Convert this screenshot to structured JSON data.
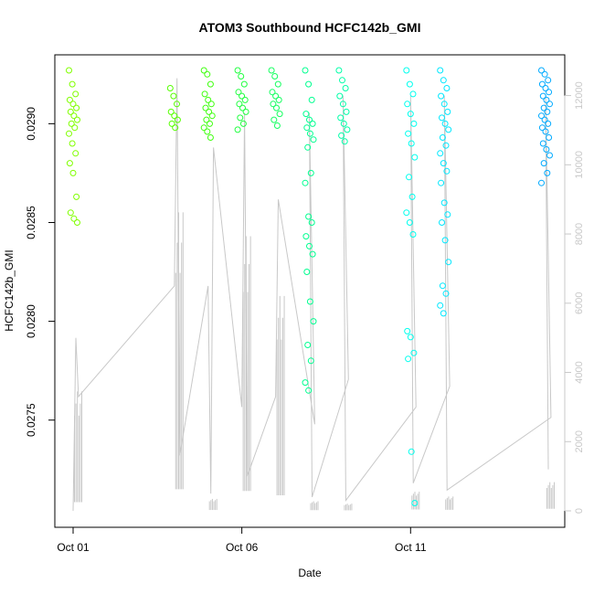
{
  "chart_data": {
    "type": "scatter",
    "title": "ATOM3 Southbound HCFC142b_GMI",
    "xlabel": "Date",
    "ylabel": "HCFC142b_GMI",
    "x_ticks": [
      "Oct 01",
      "Oct 06",
      "Oct 11"
    ],
    "y_left": {
      "range": [
        0.02705,
        0.02927
      ],
      "ticks": [
        "0.0275",
        "0.0280",
        "0.0285",
        "0.0290"
      ]
    },
    "y_right": {
      "range": [
        0,
        12200
      ],
      "ticks": [
        "0",
        "2000",
        "4000",
        "6000",
        "8000",
        "10000",
        "12000"
      ]
    },
    "x_range_days": [
      "2016-10-01",
      "2016-10-15"
    ],
    "series": [
      {
        "kind": "points",
        "clusters": [
          {
            "date": "Oct 01",
            "color": "#80ff00",
            "values": [
              0.02927,
              0.0292,
              0.02915,
              0.02912,
              0.0291,
              0.02908,
              0.02906,
              0.02904,
              0.02902,
              0.029,
              0.02898,
              0.02895,
              0.0289,
              0.02885,
              0.0288,
              0.02875,
              0.02863,
              0.02855,
              0.02852,
              0.0285
            ]
          },
          {
            "date": "Oct 04",
            "color": "#55ff00",
            "values": [
              0.02918,
              0.02914,
              0.0291,
              0.02906,
              0.02904,
              0.02902,
              0.029,
              0.02898
            ]
          },
          {
            "date": "Oct 05",
            "color": "#40ff10",
            "values": [
              0.02927,
              0.02925,
              0.0292,
              0.02915,
              0.02912,
              0.0291,
              0.02908,
              0.02906,
              0.02904,
              0.02902,
              0.029,
              0.02898,
              0.02896,
              0.02893
            ]
          },
          {
            "date": "Oct 06",
            "color": "#20ff40",
            "values": [
              0.02927,
              0.02924,
              0.0292,
              0.02916,
              0.02914,
              0.02912,
              0.0291,
              0.02908,
              0.02906,
              0.02903,
              0.029,
              0.02897
            ]
          },
          {
            "date": "Oct 07",
            "color": "#15ff60",
            "values": [
              0.02927,
              0.02924,
              0.0292,
              0.02916,
              0.02914,
              0.02912,
              0.0291,
              0.02908,
              0.02905,
              0.02902,
              0.02899
            ]
          },
          {
            "date": "Oct 08",
            "color": "#00ff90",
            "values": [
              0.02927,
              0.0292,
              0.02912,
              0.02905,
              0.02902,
              0.029,
              0.02898,
              0.02895,
              0.02892,
              0.02888,
              0.02875,
              0.0287,
              0.02853,
              0.0285,
              0.02843,
              0.02838,
              0.02834,
              0.02825,
              0.0281,
              0.028,
              0.02788,
              0.0278,
              0.02769,
              0.02765
            ]
          },
          {
            "date": "Oct 09",
            "color": "#00ffa8",
            "values": [
              0.02927,
              0.02922,
              0.02918,
              0.02914,
              0.0291,
              0.02906,
              0.02903,
              0.029,
              0.02897,
              0.02894,
              0.02891
            ]
          },
          {
            "date": "Oct 11",
            "color": "#00ffee",
            "values": [
              0.02927,
              0.0292,
              0.02915,
              0.0291,
              0.02905,
              0.029,
              0.02895,
              0.0289,
              0.02883,
              0.02873,
              0.02863,
              0.02855,
              0.0285,
              0.02844,
              0.02795,
              0.02792,
              0.02784,
              0.02781,
              0.02734,
              0.02708
            ]
          },
          {
            "date": "Oct 12",
            "color": "#00e8ff",
            "values": [
              0.02927,
              0.02922,
              0.02918,
              0.02914,
              0.0291,
              0.02906,
              0.02903,
              0.029,
              0.02897,
              0.02893,
              0.02889,
              0.02885,
              0.0288,
              0.02876,
              0.0287,
              0.0286,
              0.02854,
              0.0285,
              0.02841,
              0.0283,
              0.02818,
              0.02814,
              0.02808,
              0.02804
            ]
          },
          {
            "date": "Oct 15",
            "color": "#00aaff",
            "values": [
              0.02927,
              0.02925,
              0.02922,
              0.0292,
              0.02918,
              0.02916,
              0.02914,
              0.02912,
              0.0291,
              0.02908,
              0.02906,
              0.02904,
              0.02902,
              0.029,
              0.02898,
              0.02896,
              0.02893,
              0.0289,
              0.02887,
              0.02884,
              0.0288,
              0.02875,
              0.0287
            ]
          }
        ]
      },
      {
        "kind": "line",
        "color": "#c8c8c8",
        "axis": "right",
        "points": [
          [
            "Oct 01",
            0
          ],
          [
            "Oct 01",
            5000
          ],
          [
            "Oct 01",
            3300
          ],
          [
            "Oct 04",
            6500
          ],
          [
            "Oct 04",
            12500
          ],
          [
            "Oct 04",
            1600
          ],
          [
            "Oct 05",
            6500
          ],
          [
            "Oct 05",
            500
          ],
          [
            "Oct 05",
            10500
          ],
          [
            "Oct 06",
            3000
          ],
          [
            "Oct 06",
            11500
          ],
          [
            "Oct 06",
            1000
          ],
          [
            "Oct 07",
            3300
          ],
          [
            "Oct 07",
            9000
          ],
          [
            "Oct 08",
            2500
          ],
          [
            "Oct 08",
            11500
          ],
          [
            "Oct 08",
            400
          ],
          [
            "Oct 09",
            3800
          ],
          [
            "Oct 09",
            12000
          ],
          [
            "Oct 09",
            300
          ],
          [
            "Oct 11",
            3000
          ],
          [
            "Oct 11",
            12000
          ],
          [
            "Oct 11",
            800
          ],
          [
            "Oct 12",
            3600
          ],
          [
            "Oct 12",
            12000
          ],
          [
            "Oct 12",
            600
          ],
          [
            "Oct 15",
            2700
          ],
          [
            "Oct 15",
            12000
          ],
          [
            "Oct 15",
            1200
          ]
        ]
      }
    ]
  }
}
